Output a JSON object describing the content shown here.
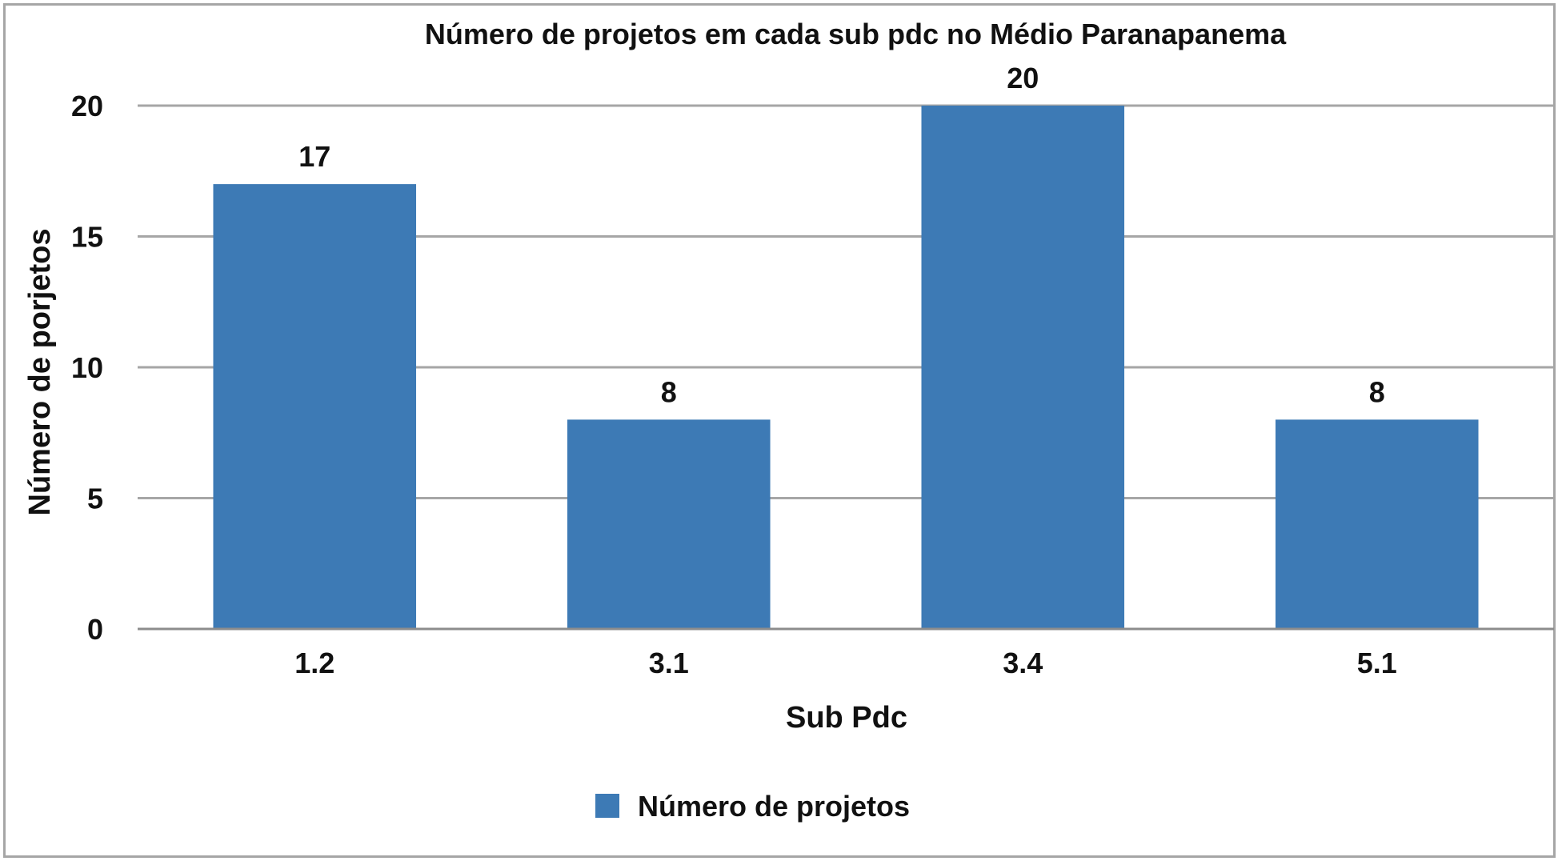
{
  "chart_data": {
    "type": "bar",
    "title": "Número de projetos em cada sub pdc no Médio Paranapanema",
    "xlabel": "Sub Pdc",
    "ylabel": "Número de porjetos",
    "categories": [
      "1.2",
      "3.1",
      "3.4",
      "5.1"
    ],
    "series": [
      {
        "name": "Número de projetos",
        "values": [
          17,
          8,
          20,
          8
        ],
        "color": "#3d7ab5"
      }
    ],
    "ylim": [
      0,
      20
    ],
    "yticks": [
      0,
      5,
      10,
      15,
      20
    ],
    "grid": true,
    "legend_position": "bottom",
    "data_labels": true
  }
}
